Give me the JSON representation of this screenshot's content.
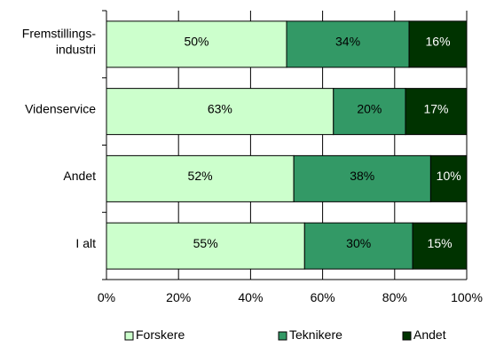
{
  "chart_data": {
    "type": "bar",
    "orientation": "horizontal",
    "stacked": true,
    "categories": [
      [
        "Fremstillings-",
        "industri"
      ],
      "Videnservice",
      "Andet",
      "I alt"
    ],
    "series": [
      {
        "name": "Forskere",
        "values": [
          50,
          63,
          52,
          55
        ],
        "labels": [
          "50%",
          "63%",
          "52%",
          "55%"
        ],
        "color": "#ccffcc"
      },
      {
        "name": "Teknikere",
        "values": [
          34,
          20,
          38,
          30
        ],
        "labels": [
          "34%",
          "20%",
          "38%",
          "30%"
        ],
        "color": "#339966"
      },
      {
        "name": "Andet",
        "values": [
          16,
          17,
          10,
          15
        ],
        "labels": [
          "16%",
          "17%",
          "10%",
          "15%"
        ],
        "color": "#003300"
      }
    ],
    "xlim": [
      0,
      100
    ],
    "xticks": [
      "0%",
      "20%",
      "40%",
      "60%",
      "80%",
      "100%"
    ],
    "grid": true,
    "legend": "bottom"
  }
}
